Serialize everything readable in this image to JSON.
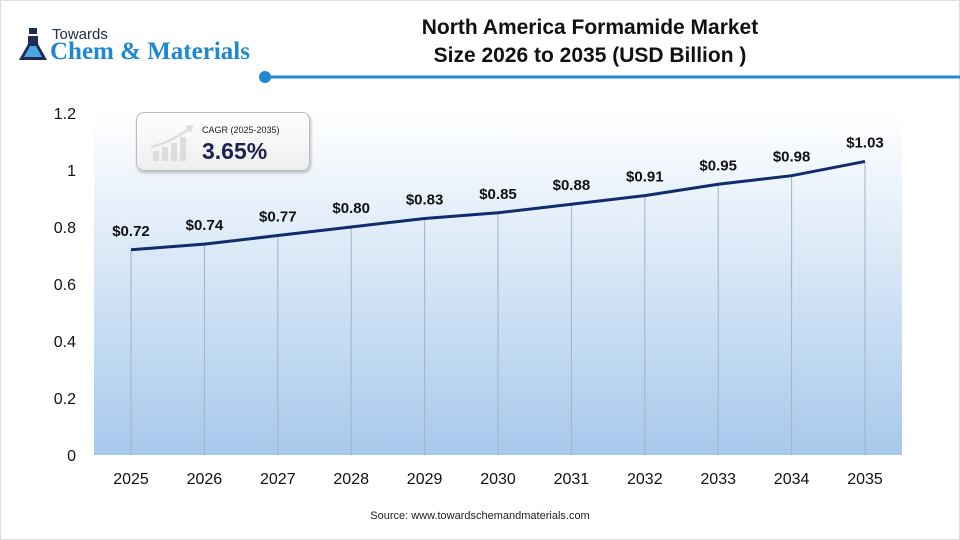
{
  "logo": {
    "line1": "Towards",
    "line2": "Chem & Materials"
  },
  "title": {
    "line1": "North America Formamide Market",
    "line2": "Size 2026 to 2035  (USD Billion )"
  },
  "cagr": {
    "label": "CAGR (2025-2035)",
    "value": "3.65%"
  },
  "source": "Source: www.towardschemandmaterials.com",
  "colors": {
    "line": "#0f2d6e",
    "area_bottom": "#a7c9ec",
    "accent": "#1e88d0"
  },
  "chart_data": {
    "type": "area",
    "title": "North America Formamide Market Size 2026 to 2035  (USD Billion )",
    "categories": [
      "2025",
      "2026",
      "2027",
      "2028",
      "2029",
      "2030",
      "2031",
      "2032",
      "2033",
      "2034",
      "2035"
    ],
    "values": [
      0.72,
      0.74,
      0.77,
      0.8,
      0.83,
      0.85,
      0.88,
      0.91,
      0.95,
      0.98,
      1.03
    ],
    "data_labels": [
      "$0.72",
      "$0.74",
      "$0.77",
      "$0.80",
      "$0.83",
      "$0.85",
      "$0.88",
      "$0.91",
      "$0.95",
      "$0.98",
      "$1.03"
    ],
    "yticks": [
      "0",
      "0.2",
      "0.4",
      "0.6",
      "0.8",
      "1",
      "1.2"
    ],
    "ylim": [
      0,
      1.2
    ],
    "grid": "vertical",
    "legend": "none"
  }
}
